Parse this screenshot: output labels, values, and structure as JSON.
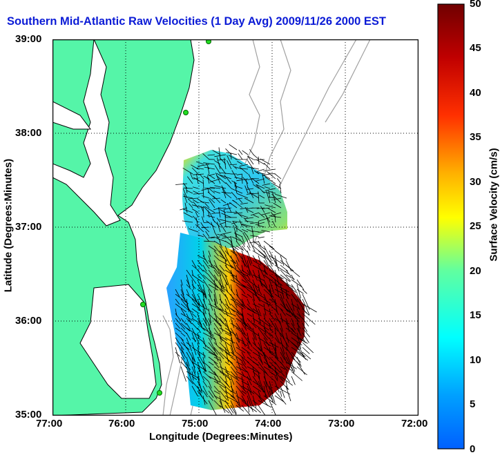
{
  "title": "Southern Mid-Atlantic Raw Velocities (1 Day Avg) 2009/11/26 2000 EST",
  "map": {
    "xlabel": "Longitude (Degrees:Minutes)",
    "ylabel": "Latitude (Degrees:Minutes)",
    "x_ticks": [
      "77:00",
      "76:00",
      "75:00",
      "74:00",
      "73:00",
      "72:00"
    ],
    "y_ticks": [
      "39:00",
      "38:00",
      "37:00",
      "36:00",
      "35:00"
    ],
    "lon_range": [
      -77,
      -72
    ],
    "lat_range": [
      35,
      39
    ],
    "grid": "dotted",
    "land_color": "#55f5a8",
    "coast_color": "#000000",
    "bathymetry_color": "#a0a0a0",
    "station_color": "#22dd22"
  },
  "colorbar": {
    "label": "Surface Velocity (cm/s)",
    "ticks": [
      "50",
      "45",
      "40",
      "35",
      "30",
      "25",
      "20",
      "15",
      "10",
      "5",
      "0"
    ],
    "range": [
      0,
      50
    ],
    "colormap": "jet"
  }
}
